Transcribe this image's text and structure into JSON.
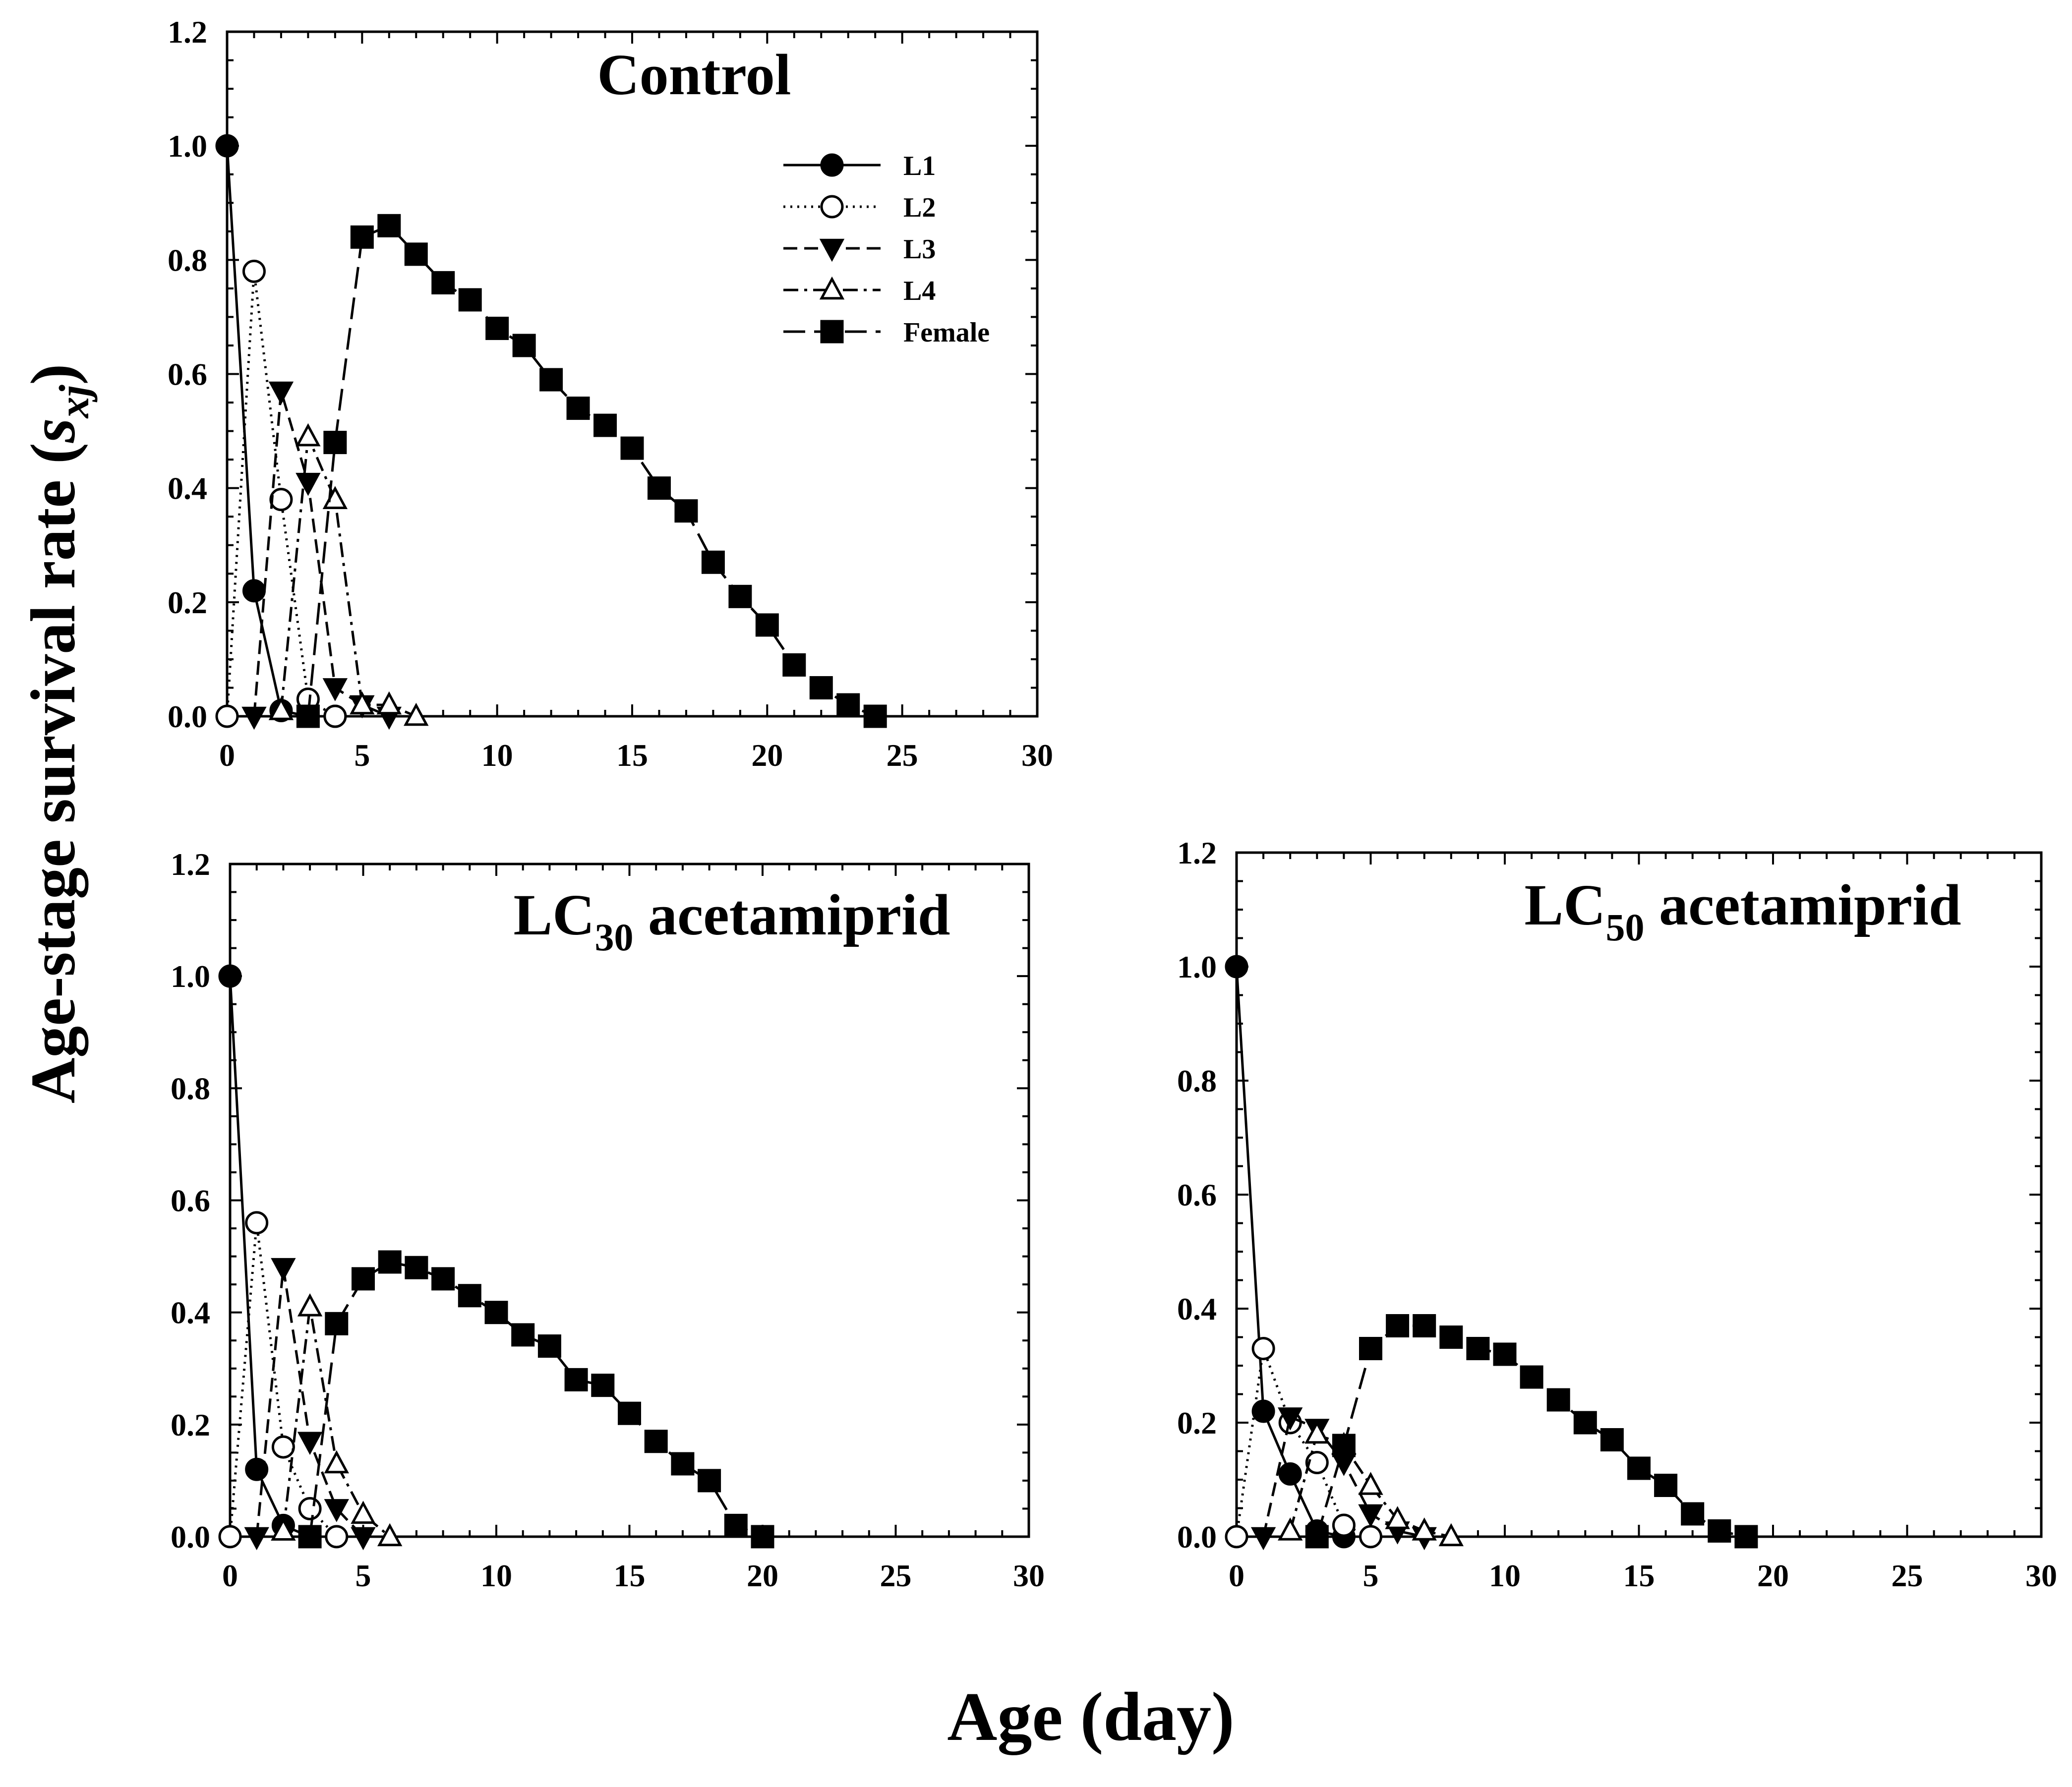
{
  "figure": {
    "ylabel_main": "Age-stage survival rate (",
    "ylabel_symbol": "s",
    "ylabel_subscript": "xj",
    "ylabel_close": ")",
    "xlabel": "Age (day)"
  },
  "legend": {
    "entries": [
      "L1",
      "L2",
      "L3",
      "L4",
      "Female"
    ]
  },
  "chart_data": [
    {
      "type": "line",
      "title": "Control",
      "title_main": "Control",
      "title_sub": "",
      "title_suffix": "",
      "xlim": [
        0,
        30
      ],
      "ylim": [
        0,
        1.2
      ],
      "xticks": [
        "0",
        "5",
        "10",
        "15",
        "20",
        "25",
        "30"
      ],
      "yticks": [
        "0.0",
        "0.2",
        "0.4",
        "0.6",
        "0.8",
        "1.0",
        "1.2"
      ],
      "legend": "top-right",
      "series": [
        {
          "name": "L1",
          "marker": "circle-filled",
          "dash": "solid",
          "x": [
            0,
            1,
            2,
            3,
            4
          ],
          "y": [
            1.0,
            0.22,
            0.01,
            0.0,
            0.0
          ]
        },
        {
          "name": "L2",
          "marker": "circle-open",
          "dash": "dotted",
          "x": [
            0,
            1,
            2,
            3,
            4
          ],
          "y": [
            0.0,
            0.78,
            0.38,
            0.03,
            0.0
          ]
        },
        {
          "name": "L3",
          "marker": "triangle-down-filled",
          "dash": "dashed",
          "x": [
            1,
            2,
            3,
            4,
            5,
            6
          ],
          "y": [
            0.0,
            0.57,
            0.41,
            0.05,
            0.02,
            0.0
          ]
        },
        {
          "name": "L4",
          "marker": "triangle-up-open",
          "dash": "dashdot",
          "x": [
            2,
            3,
            4,
            5,
            6,
            7
          ],
          "y": [
            0.01,
            0.49,
            0.38,
            0.02,
            0.02,
            0.0
          ]
        },
        {
          "name": "Female",
          "marker": "square-filled",
          "dash": "longdash",
          "x": [
            3,
            4,
            5,
            6,
            7,
            8,
            9,
            10,
            11,
            12,
            13,
            14,
            15,
            16,
            17,
            18,
            19,
            20,
            21,
            22,
            23,
            24
          ],
          "y": [
            0.0,
            0.48,
            0.84,
            0.86,
            0.81,
            0.76,
            0.73,
            0.68,
            0.65,
            0.59,
            0.54,
            0.51,
            0.47,
            0.4,
            0.36,
            0.27,
            0.21,
            0.16,
            0.09,
            0.05,
            0.02,
            0.0
          ]
        }
      ]
    },
    {
      "type": "line",
      "title": "LC30 acetamiprid",
      "title_main": "LC",
      "title_sub": "30",
      "title_suffix": " acetamiprid",
      "xlim": [
        0,
        30
      ],
      "ylim": [
        0,
        1.2
      ],
      "xticks": [
        "0",
        "5",
        "10",
        "15",
        "20",
        "25",
        "30"
      ],
      "yticks": [
        "0.0",
        "0.2",
        "0.4",
        "0.6",
        "0.8",
        "1.0",
        "1.2"
      ],
      "series": [
        {
          "name": "L1",
          "marker": "circle-filled",
          "dash": "solid",
          "x": [
            0,
            1,
            2,
            3
          ],
          "y": [
            1.0,
            0.12,
            0.02,
            0.0
          ]
        },
        {
          "name": "L2",
          "marker": "circle-open",
          "dash": "dotted",
          "x": [
            0,
            1,
            2,
            3,
            4
          ],
          "y": [
            0.0,
            0.56,
            0.16,
            0.05,
            0.0
          ]
        },
        {
          "name": "L3",
          "marker": "triangle-down-filled",
          "dash": "dashed",
          "x": [
            1,
            2,
            3,
            4,
            5
          ],
          "y": [
            0.0,
            0.48,
            0.17,
            0.05,
            0.0
          ]
        },
        {
          "name": "L4",
          "marker": "triangle-up-open",
          "dash": "dashdot",
          "x": [
            2,
            3,
            4,
            5,
            6
          ],
          "y": [
            0.01,
            0.41,
            0.13,
            0.04,
            0.0
          ]
        },
        {
          "name": "Female",
          "marker": "square-filled",
          "dash": "longdash",
          "x": [
            3,
            4,
            5,
            6,
            7,
            8,
            9,
            10,
            11,
            12,
            13,
            14,
            15,
            16,
            17,
            18,
            19,
            20
          ],
          "y": [
            0.0,
            0.38,
            0.46,
            0.49,
            0.48,
            0.46,
            0.43,
            0.4,
            0.36,
            0.34,
            0.28,
            0.27,
            0.22,
            0.17,
            0.13,
            0.1,
            0.02,
            0.0
          ]
        }
      ]
    },
    {
      "type": "line",
      "title": "LC50 acetamiprid",
      "title_main": "LC",
      "title_sub": "50",
      "title_suffix": " acetamiprid",
      "xlim": [
        0,
        30
      ],
      "ylim": [
        0,
        1.2
      ],
      "xticks": [
        "0",
        "5",
        "10",
        "15",
        "20",
        "25",
        "30"
      ],
      "yticks": [
        "0.0",
        "0.2",
        "0.4",
        "0.6",
        "0.8",
        "1.0",
        "1.2"
      ],
      "series": [
        {
          "name": "L1",
          "marker": "circle-filled",
          "dash": "solid",
          "x": [
            0,
            1,
            2,
            3,
            4
          ],
          "y": [
            1.0,
            0.22,
            0.11,
            0.01,
            0.0
          ]
        },
        {
          "name": "L2",
          "marker": "circle-open",
          "dash": "dotted",
          "x": [
            0,
            1,
            2,
            3,
            4,
            5
          ],
          "y": [
            0.0,
            0.33,
            0.2,
            0.13,
            0.02,
            0.0
          ]
        },
        {
          "name": "L3",
          "marker": "triangle-down-filled",
          "dash": "dashed",
          "x": [
            1,
            2,
            3,
            4,
            5,
            6,
            7
          ],
          "y": [
            0.0,
            0.21,
            0.19,
            0.13,
            0.04,
            0.01,
            0.0
          ]
        },
        {
          "name": "L4",
          "marker": "triangle-up-open",
          "dash": "dashdot",
          "x": [
            2,
            3,
            4,
            5,
            6,
            7,
            8
          ],
          "y": [
            0.01,
            0.18,
            0.16,
            0.09,
            0.03,
            0.01,
            0.0
          ]
        },
        {
          "name": "Female",
          "marker": "square-filled",
          "dash": "longdash",
          "x": [
            3,
            4,
            5,
            6,
            7,
            8,
            9,
            10,
            11,
            12,
            13,
            14,
            15,
            16,
            17,
            18,
            19
          ],
          "y": [
            0.0,
            0.16,
            0.33,
            0.37,
            0.37,
            0.35,
            0.33,
            0.32,
            0.28,
            0.24,
            0.2,
            0.17,
            0.12,
            0.09,
            0.04,
            0.01,
            0.0
          ]
        }
      ]
    }
  ]
}
